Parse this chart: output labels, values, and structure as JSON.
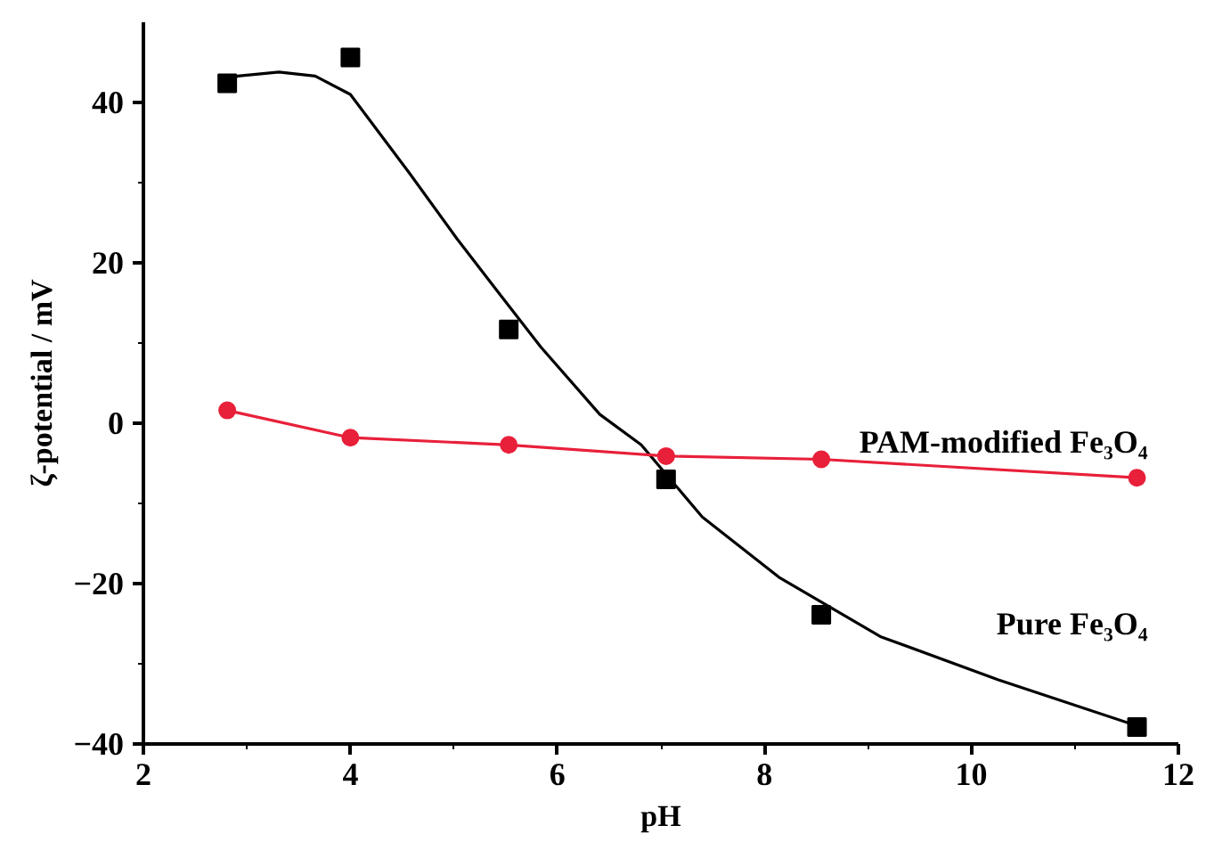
{
  "chart_data": {
    "type": "line",
    "xlabel": "pH",
    "ylabel": "ζ-potential / mV",
    "xlim": [
      2,
      12
    ],
    "ylim": [
      -40,
      50
    ],
    "xticks": [
      2,
      4,
      6,
      8,
      10,
      12
    ],
    "yticks": [
      -40,
      -20,
      0,
      20,
      40
    ],
    "grid": false,
    "series": [
      {
        "type": "scatter",
        "name": "Pure Fe₃O₄",
        "marker": "square",
        "color": "#000000",
        "x": [
          2.81,
          4.0,
          5.53,
          7.05,
          8.55,
          11.6
        ],
        "values": [
          42.4,
          45.6,
          11.7,
          -7.0,
          -23.9,
          -37.9
        ]
      },
      {
        "type": "line",
        "marker": "none",
        "color": "#000000",
        "x": [
          2.81,
          2.91,
          3.31,
          3.66,
          4.0,
          4.57,
          5.03,
          5.43,
          5.84,
          6.41,
          6.81,
          7.4,
          8.14,
          9.12,
          10.26,
          11.59
        ],
        "values": [
          42.6,
          43.3,
          43.8,
          43.3,
          41.0,
          31.2,
          23.0,
          16.3,
          9.5,
          1.1,
          -2.7,
          -11.7,
          -19.2,
          -26.6,
          -32.0,
          -37.7
        ]
      },
      {
        "name": "PAM-modified Fe₃O₄",
        "marker": "circle",
        "color": "#e8203a",
        "x": [
          2.81,
          4.0,
          5.53,
          7.05,
          8.55,
          11.6
        ],
        "values": [
          1.6,
          -1.8,
          -2.7,
          -4.1,
          -4.5,
          -6.8
        ]
      }
    ]
  }
}
